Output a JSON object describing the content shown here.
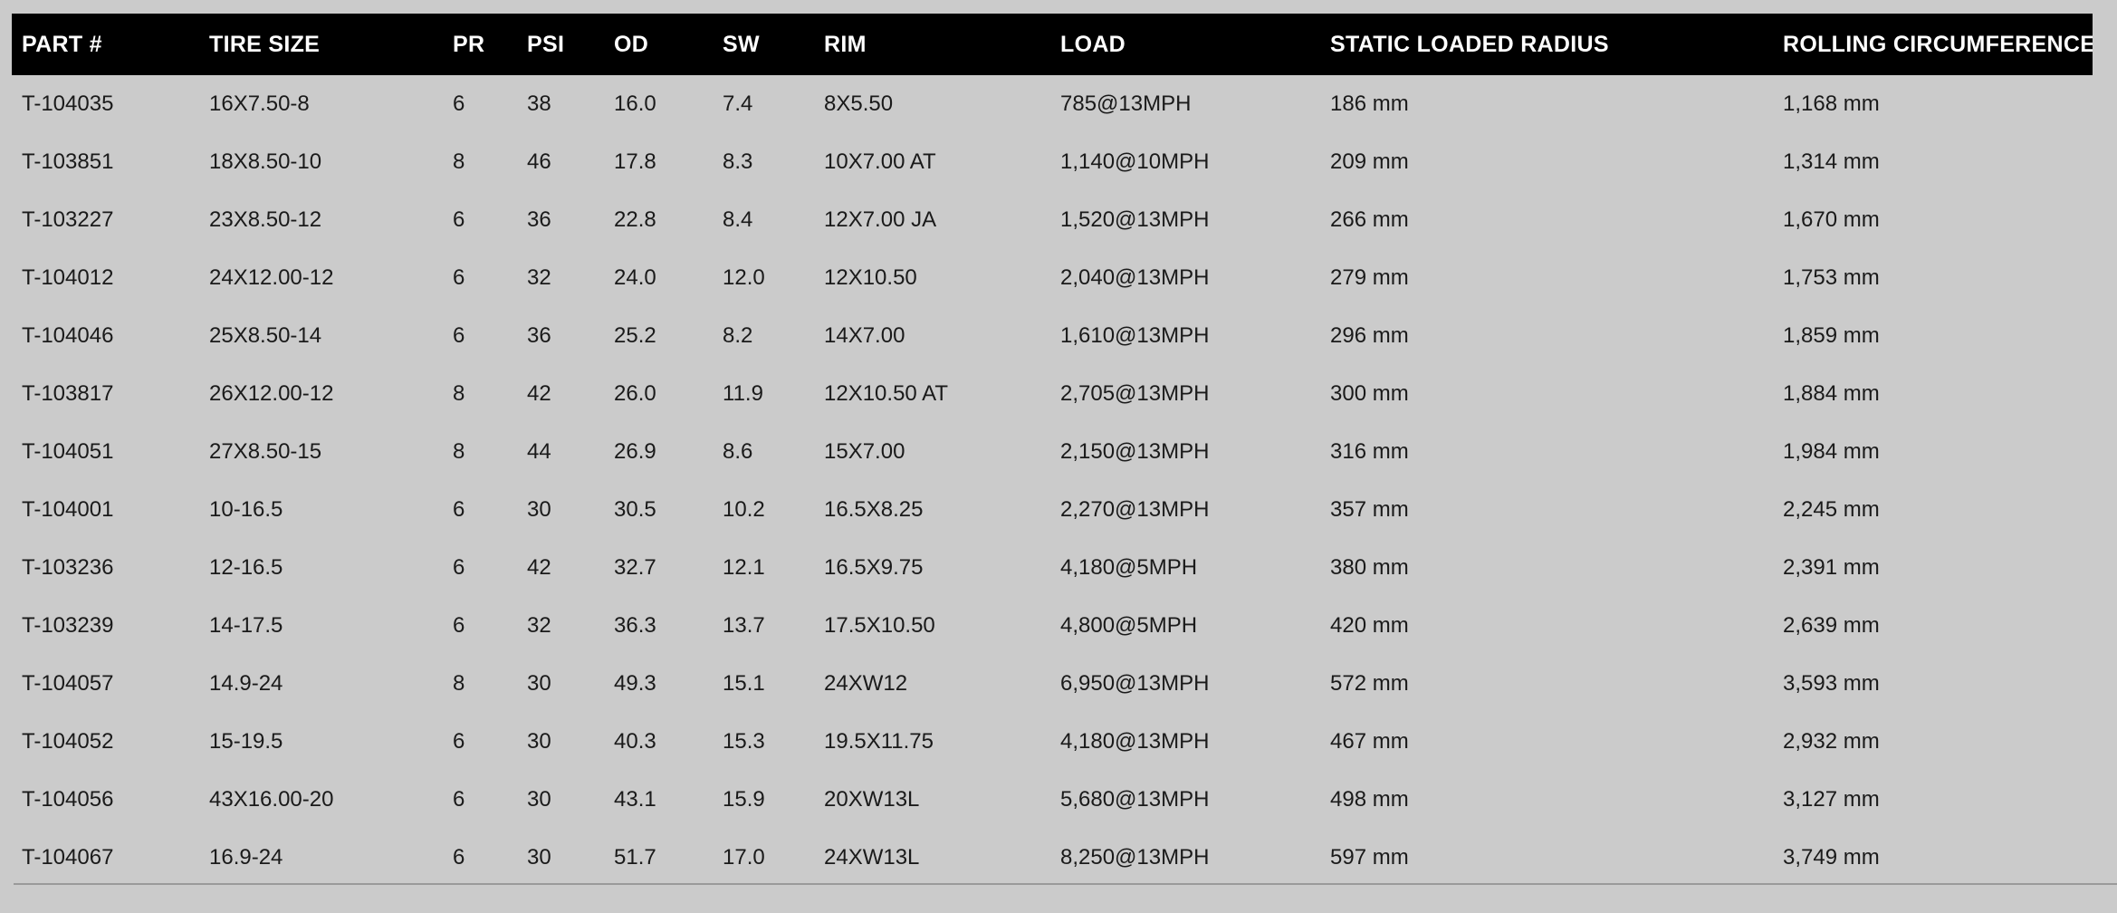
{
  "colors": {
    "page_background": "#cbcbcb",
    "header_background": "#000000",
    "header_text": "#ffffff",
    "body_text": "#1a1a1a",
    "bottom_rule": "#9a9a9a"
  },
  "chart_data": {
    "type": "table",
    "columns": [
      "PART #",
      "TIRE SIZE",
      "PR",
      "PSI",
      "OD",
      "SW",
      "RIM",
      "LOAD",
      "STATIC LOADED RADIUS",
      "ROLLING CIRCUMFERENCE"
    ],
    "rows": [
      [
        "T-104035",
        "16X7.50-8",
        "6",
        "38",
        "16.0",
        "7.4",
        "8X5.50",
        "785@13MPH",
        "186 mm",
        "1,168 mm"
      ],
      [
        "T-103851",
        "18X8.50-10",
        "8",
        "46",
        "17.8",
        "8.3",
        "10X7.00 AT",
        "1,140@10MPH",
        "209 mm",
        "1,314 mm"
      ],
      [
        "T-103227",
        "23X8.50-12",
        "6",
        "36",
        "22.8",
        "8.4",
        "12X7.00 JA",
        "1,520@13MPH",
        "266 mm",
        "1,670 mm"
      ],
      [
        "T-104012",
        "24X12.00-12",
        "6",
        "32",
        "24.0",
        "12.0",
        "12X10.50",
        "2,040@13MPH",
        "279 mm",
        "1,753 mm"
      ],
      [
        "T-104046",
        "25X8.50-14",
        "6",
        "36",
        "25.2",
        "8.2",
        "14X7.00",
        "1,610@13MPH",
        "296 mm",
        "1,859 mm"
      ],
      [
        "T-103817",
        "26X12.00-12",
        "8",
        "42",
        "26.0",
        "11.9",
        "12X10.50 AT",
        "2,705@13MPH",
        "300 mm",
        "1,884 mm"
      ],
      [
        "T-104051",
        "27X8.50-15",
        "8",
        "44",
        "26.9",
        "8.6",
        "15X7.00",
        "2,150@13MPH",
        "316 mm",
        "1,984 mm"
      ],
      [
        "T-104001",
        "10-16.5",
        "6",
        "30",
        "30.5",
        "10.2",
        "16.5X8.25",
        "2,270@13MPH",
        "357 mm",
        "2,245 mm"
      ],
      [
        "T-103236",
        "12-16.5",
        "6",
        "42",
        "32.7",
        "12.1",
        "16.5X9.75",
        "4,180@5MPH",
        "380 mm",
        "2,391 mm"
      ],
      [
        "T-103239",
        "14-17.5",
        "6",
        "32",
        "36.3",
        "13.7",
        "17.5X10.50",
        "4,800@5MPH",
        "420 mm",
        "2,639 mm"
      ],
      [
        "T-104057",
        "14.9-24",
        "8",
        "30",
        "49.3",
        "15.1",
        "24XW12",
        "6,950@13MPH",
        "572 mm",
        "3,593 mm"
      ],
      [
        "T-104052",
        "15-19.5",
        "6",
        "30",
        "40.3",
        "15.3",
        "19.5X11.75",
        "4,180@13MPH",
        "467 mm",
        "2,932 mm"
      ],
      [
        "T-104056",
        "43X16.00-20",
        "6",
        "30",
        "43.1",
        "15.9",
        "20XW13L",
        "5,680@13MPH",
        "498 mm",
        "3,127 mm"
      ],
      [
        "T-104067",
        "16.9-24",
        "6",
        "30",
        "51.7",
        "17.0",
        "24XW13L",
        "8,250@13MPH",
        "597 mm",
        "3,749 mm"
      ]
    ]
  }
}
